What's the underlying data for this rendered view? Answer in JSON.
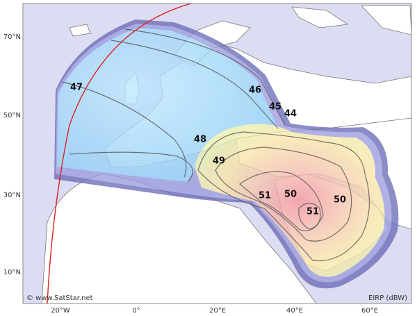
{
  "map": {
    "latitude_labels": [
      "70°N",
      "50°N",
      "30°N",
      "10°N"
    ],
    "longitude_labels": [
      "20°W",
      "0°",
      "20°E",
      "40°E",
      "60°E"
    ],
    "contour_labels": [
      "47",
      "46",
      "45",
      "44",
      "48",
      "49",
      "51",
      "50",
      "51",
      "50"
    ],
    "credit": "© www.SatStar.net",
    "legend_label": "EIRP (dBW)"
  }
}
